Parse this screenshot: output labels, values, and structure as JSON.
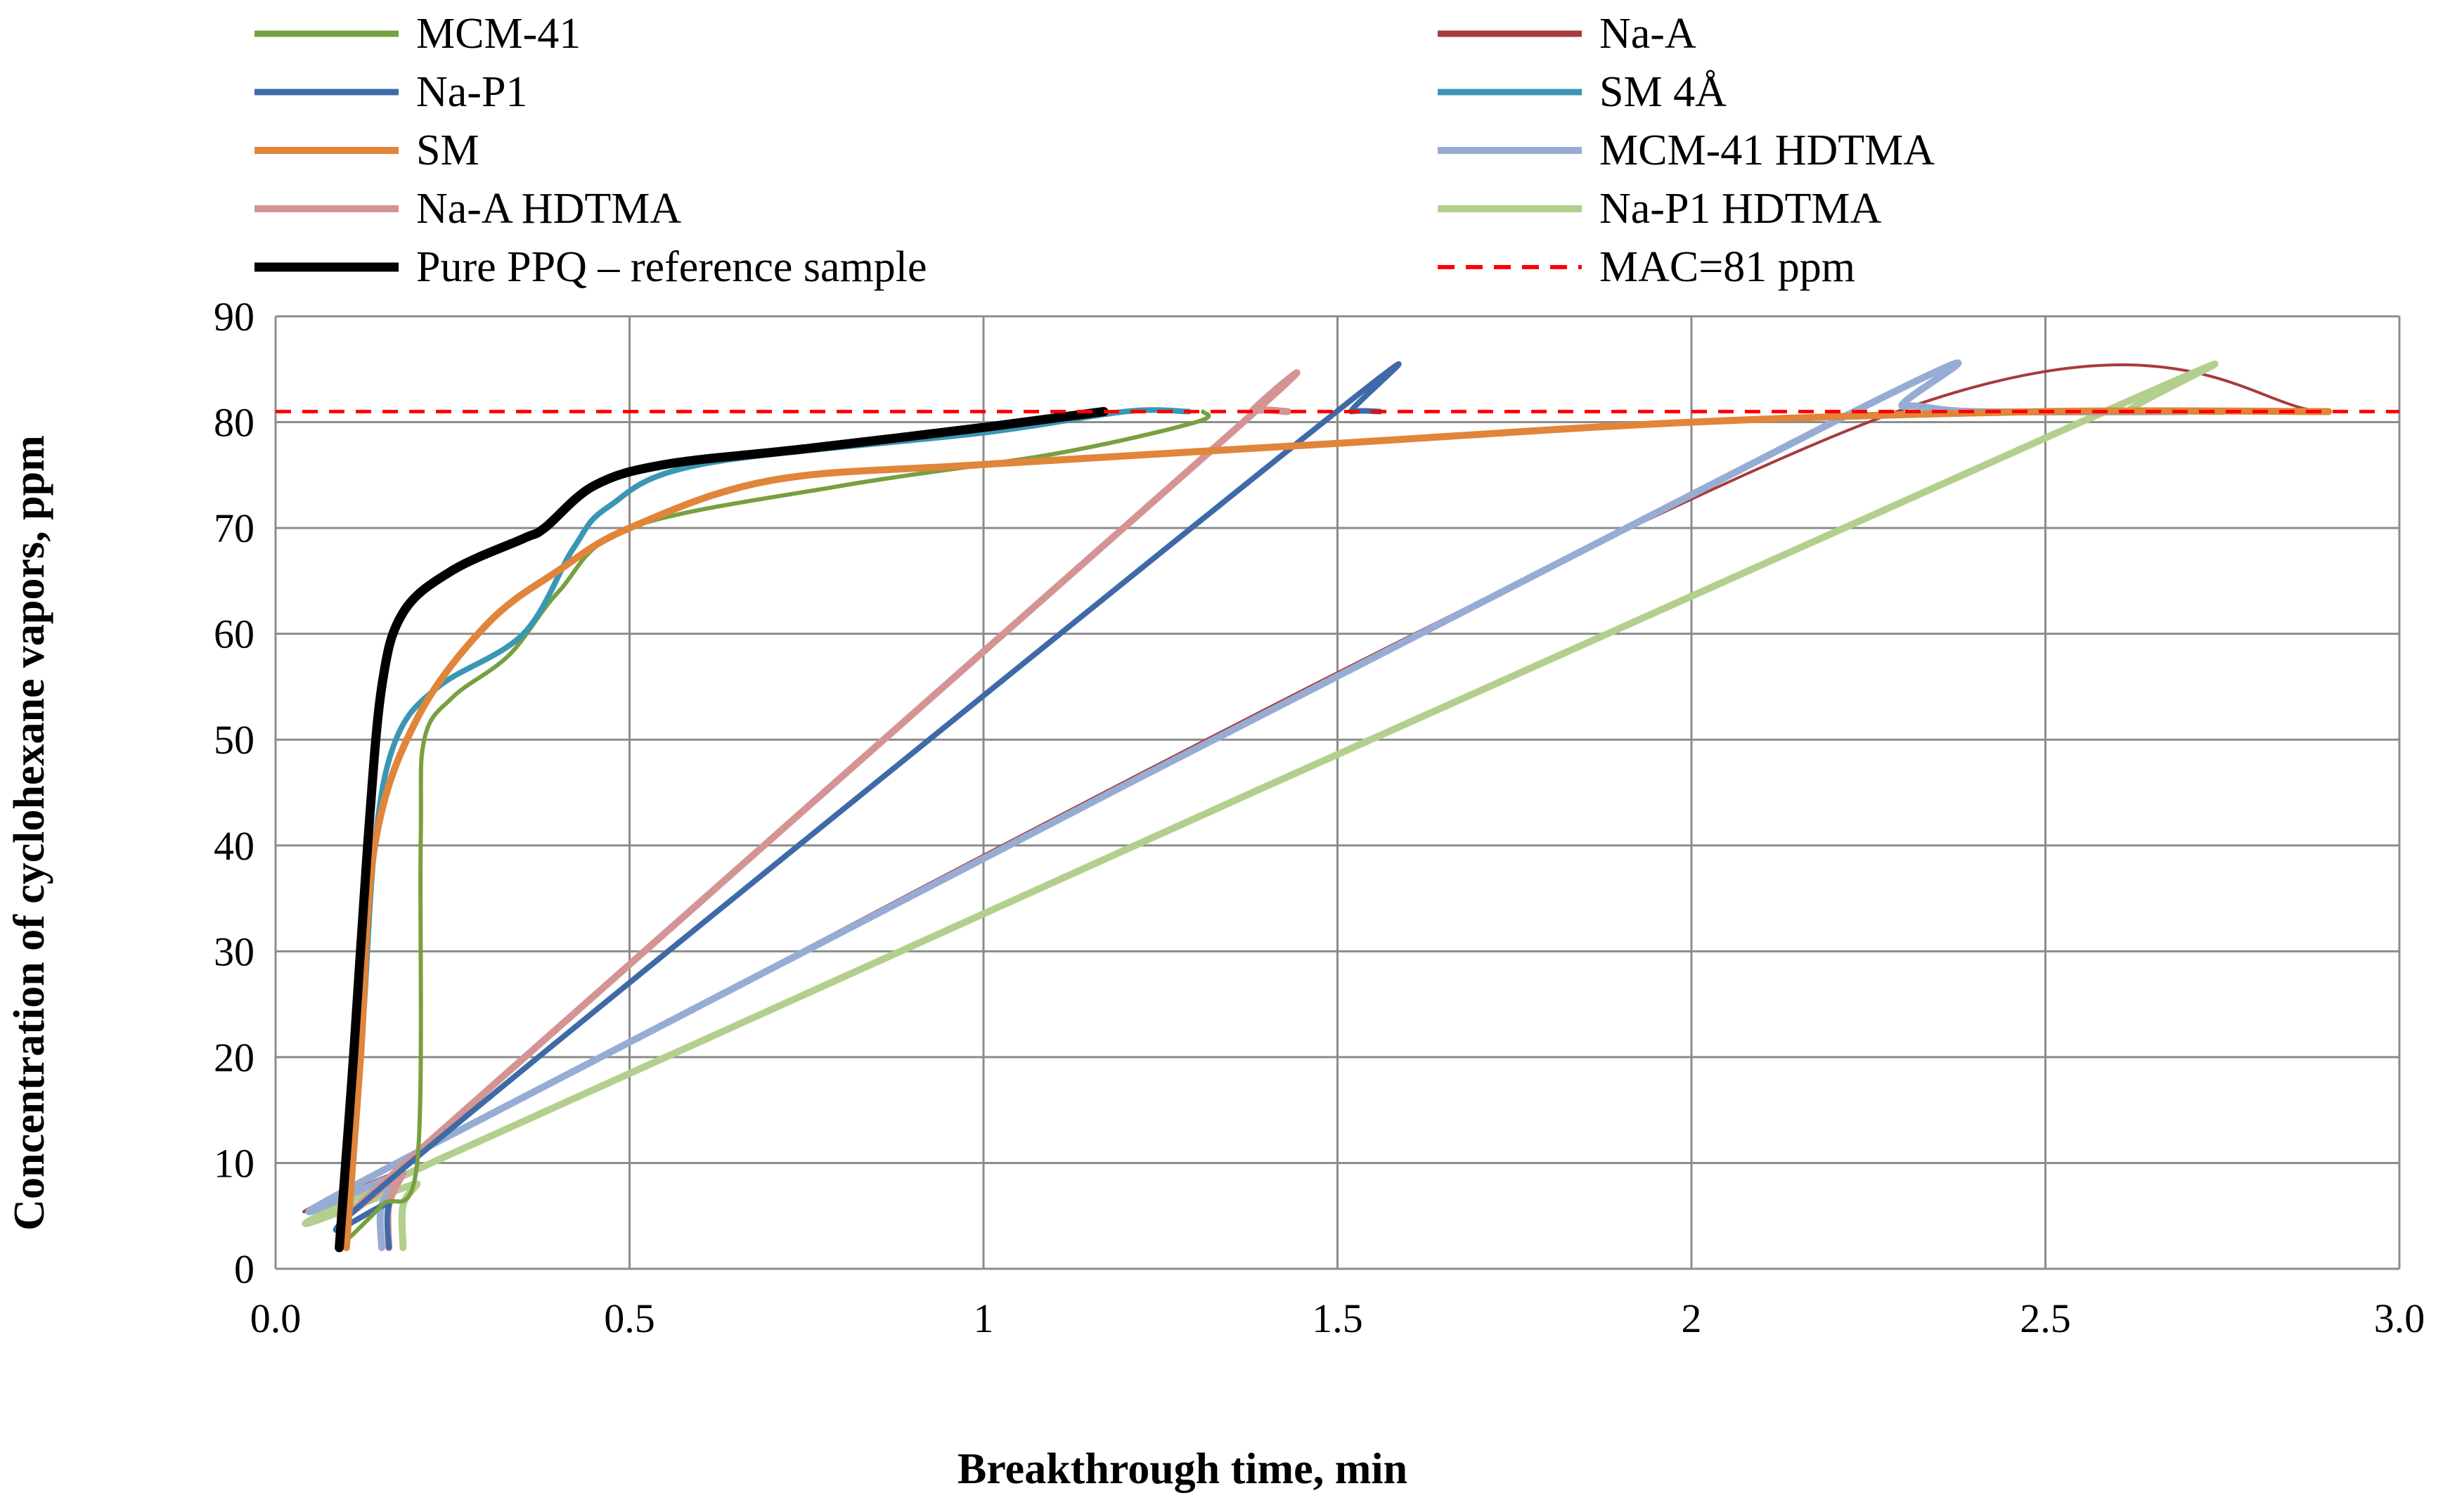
{
  "chart_data": {
    "type": "line",
    "title": "",
    "xlabel": "Breakthrough time, min",
    "ylabel": "Concentration of cyclohexane vapors, ppm",
    "xlim": [
      0,
      3
    ],
    "ylim": [
      0,
      90
    ],
    "x_tick_labels": [
      "0.0",
      "0.5",
      "1",
      "1.5",
      "2",
      "2.5",
      "3.0"
    ],
    "y_tick_labels": [
      "0",
      "10",
      "20",
      "30",
      "40",
      "50",
      "60",
      "70",
      "80",
      "90"
    ],
    "grid": true,
    "legend_position": "top",
    "reference_line": {
      "name": "MAC=81 ppm",
      "y": 81,
      "color": "#ff0000",
      "style": "dashed"
    },
    "series": [
      {
        "name": "MCM-41",
        "color": "#77a040",
        "width": 6,
        "points": [
          [
            0.09,
            2
          ],
          [
            0.15,
            6
          ],
          [
            0.2,
            10
          ],
          [
            0.205,
            40
          ],
          [
            0.21,
            50
          ],
          [
            0.25,
            54
          ],
          [
            0.33,
            58
          ],
          [
            0.4,
            64
          ],
          [
            0.5,
            70
          ],
          [
            0.8,
            74
          ],
          [
            1.1,
            77
          ],
          [
            1.3,
            80
          ],
          [
            1.31,
            81
          ]
        ]
      },
      {
        "name": "Na-A",
        "color": "#a83a3a",
        "width": 4,
        "points": [
          [
            0.15,
            2
          ],
          [
            0.15,
            6
          ],
          [
            0.17,
            9
          ],
          [
            0.2,
            11
          ],
          [
            2.25,
            80
          ],
          [
            2.9,
            81
          ]
        ]
      },
      {
        "name": "Na-P1",
        "color": "#3f6aa8",
        "width": 8,
        "points": [
          [
            0.16,
            2
          ],
          [
            0.16,
            6
          ],
          [
            0.19,
            10
          ],
          [
            1.48,
            80
          ],
          [
            1.52,
            81
          ],
          [
            1.56,
            81
          ]
        ]
      },
      {
        "name": "SM 4Å",
        "color": "#3a97b4",
        "width": 8,
        "points": [
          [
            0.09,
            2
          ],
          [
            0.12,
            20
          ],
          [
            0.14,
            40
          ],
          [
            0.17,
            50
          ],
          [
            0.23,
            55
          ],
          [
            0.35,
            60
          ],
          [
            0.42,
            68
          ],
          [
            0.47,
            72
          ],
          [
            0.6,
            76
          ],
          [
            1.0,
            79
          ],
          [
            1.2,
            81
          ],
          [
            1.29,
            81
          ]
        ]
      },
      {
        "name": "SM",
        "color": "#e0853a",
        "width": 10,
        "points": [
          [
            0.1,
            2
          ],
          [
            0.12,
            20
          ],
          [
            0.14,
            40
          ],
          [
            0.2,
            52
          ],
          [
            0.3,
            61
          ],
          [
            0.4,
            66
          ],
          [
            0.5,
            70
          ],
          [
            0.7,
            74.5
          ],
          [
            1.0,
            76
          ],
          [
            1.5,
            78
          ],
          [
            2.0,
            80
          ],
          [
            2.5,
            81
          ],
          [
            2.9,
            81
          ]
        ]
      },
      {
        "name": "MCM-41 HDTMA",
        "color": "#97acd4",
        "width": 10,
        "points": [
          [
            0.15,
            2
          ],
          [
            0.15,
            6
          ],
          [
            0.18,
            9
          ],
          [
            0.2,
            11
          ],
          [
            2.2,
            80
          ],
          [
            2.3,
            81.5
          ],
          [
            2.4,
            81
          ],
          [
            2.7,
            81
          ]
        ]
      },
      {
        "name": "Na-A HDTMA",
        "color": "#d49494",
        "width": 10,
        "points": [
          [
            0.16,
            2
          ],
          [
            0.16,
            6
          ],
          [
            0.18,
            9
          ],
          [
            0.2,
            11
          ],
          [
            1.35,
            79
          ],
          [
            1.38,
            81
          ],
          [
            1.43,
            81
          ]
        ]
      },
      {
        "name": "Na-P1 HDTMA",
        "color": "#b3cf8d",
        "width": 10,
        "points": [
          [
            0.18,
            2
          ],
          [
            0.18,
            6
          ],
          [
            0.2,
            8
          ],
          [
            0.22,
            10
          ],
          [
            2.55,
            80
          ],
          [
            2.62,
            81
          ],
          [
            2.75,
            81
          ]
        ]
      },
      {
        "name": "Pure PPQ – reference sample",
        "color": "#000000",
        "width": 13,
        "points": [
          [
            0.09,
            2
          ],
          [
            0.11,
            20
          ],
          [
            0.13,
            40
          ],
          [
            0.15,
            55
          ],
          [
            0.18,
            62
          ],
          [
            0.25,
            66
          ],
          [
            0.35,
            69
          ],
          [
            0.38,
            70
          ],
          [
            0.45,
            74
          ],
          [
            0.55,
            76
          ],
          [
            0.75,
            77.5
          ],
          [
            1.0,
            79.5
          ],
          [
            1.17,
            81
          ]
        ]
      }
    ]
  }
}
